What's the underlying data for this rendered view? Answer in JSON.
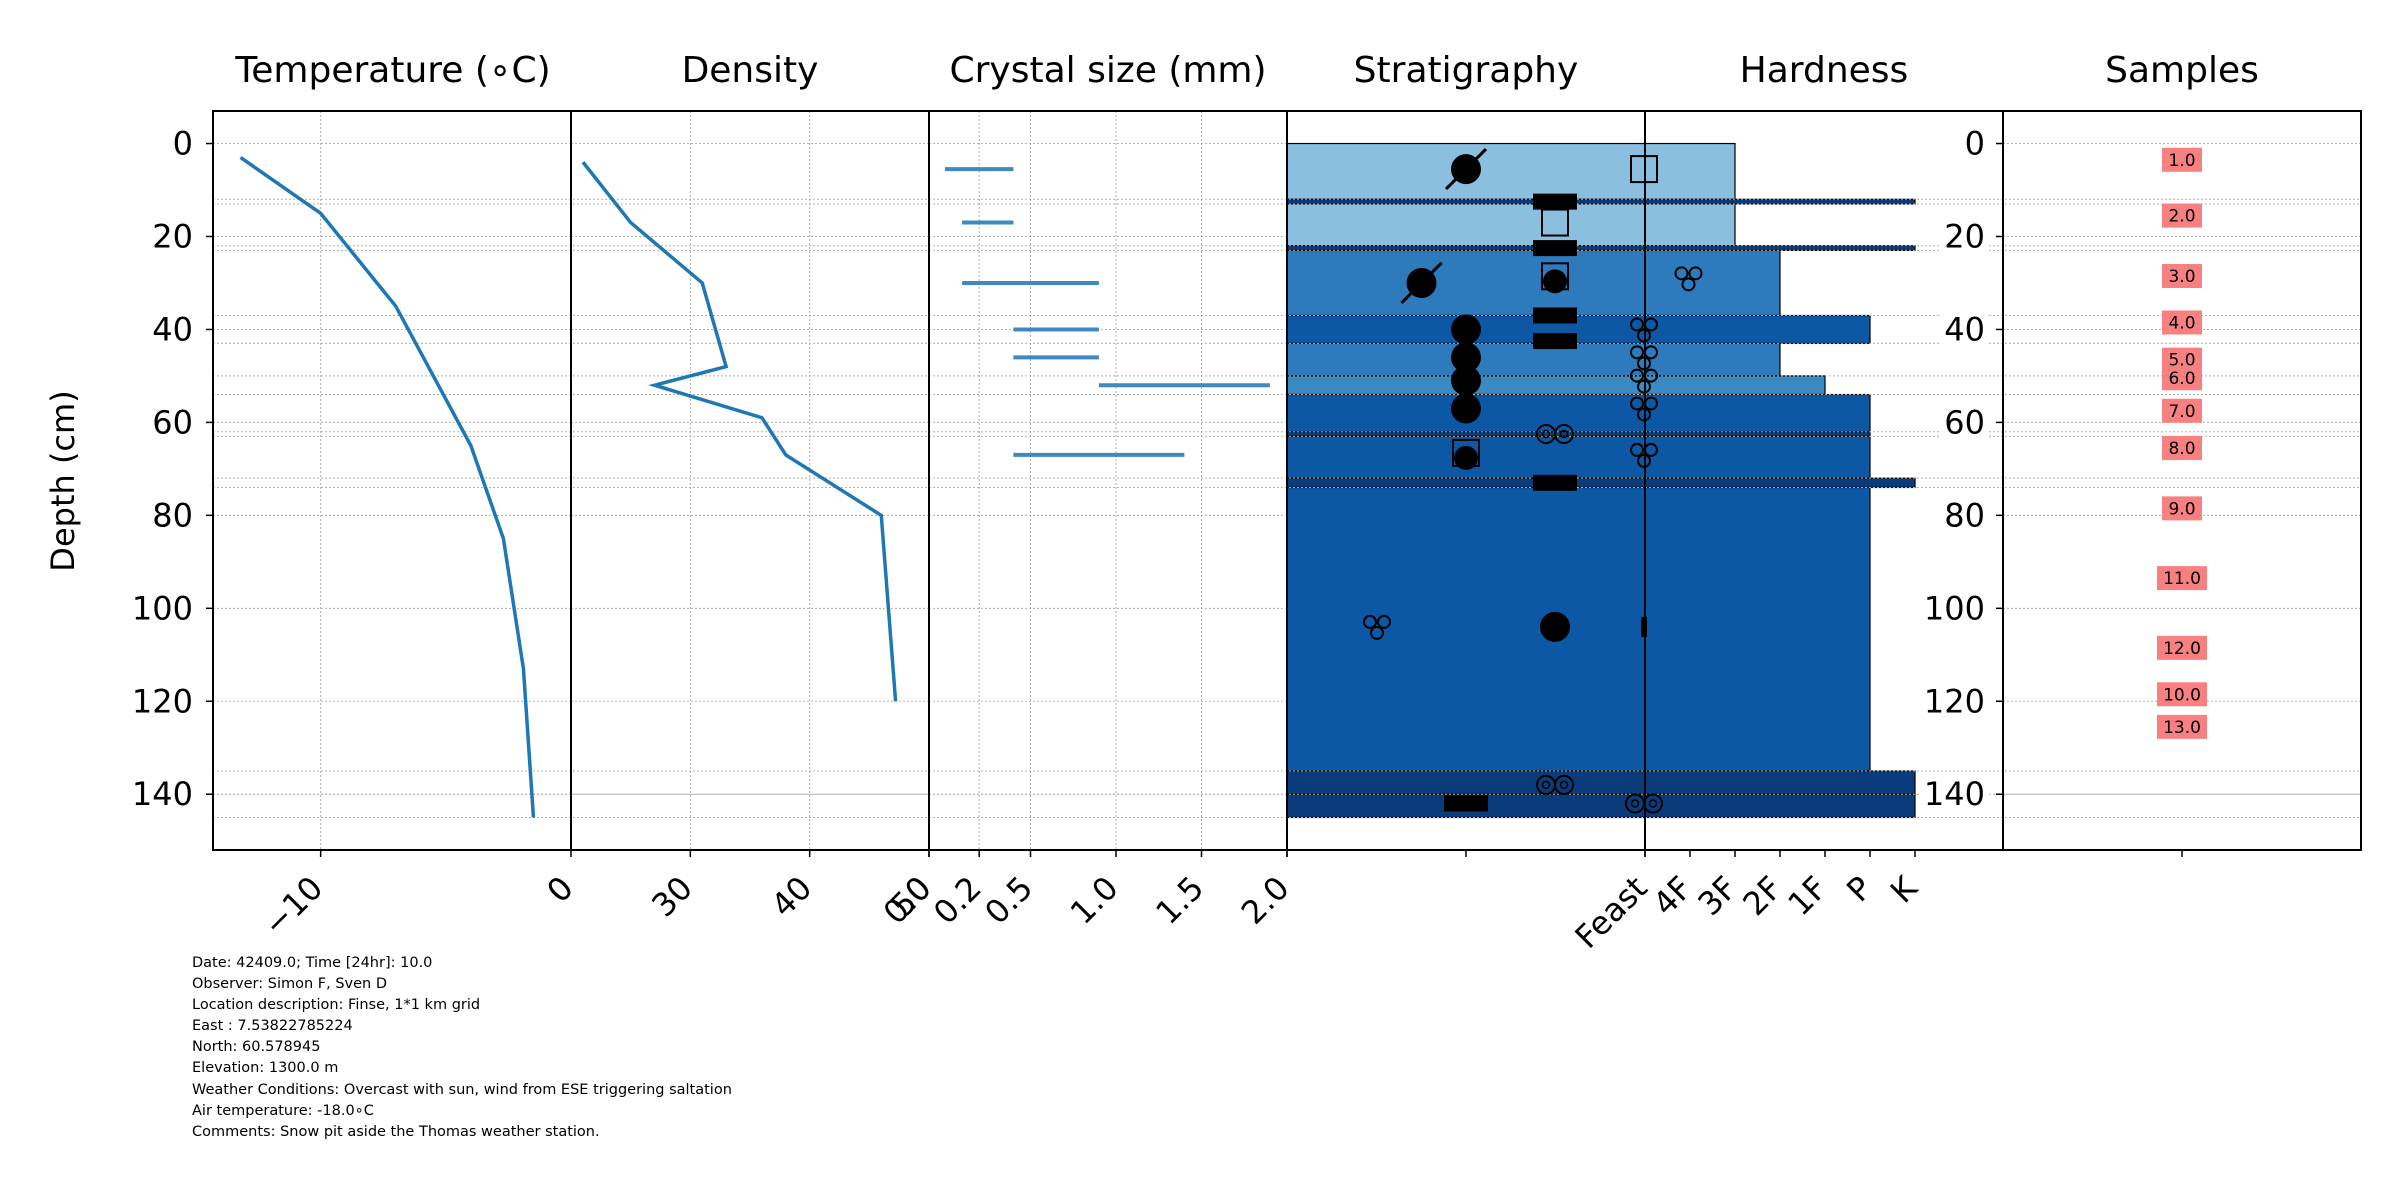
{
  "figure": {
    "ylabel": "Depth (cm)",
    "y_ticks": [
      0,
      20,
      40,
      60,
      80,
      100,
      120,
      140
    ]
  },
  "chart_data": [
    {
      "type": "line",
      "title": "Temperature (∘C)",
      "x_ticks": [
        -10,
        0
      ],
      "xlim": [
        -14.3,
        0
      ],
      "ylim": [
        152,
        -7
      ],
      "series": [
        {
          "x": [
            -13.2,
            -10.0,
            -7.0,
            -4.0,
            -2.7,
            -1.9,
            -1.5
          ],
          "y": [
            3,
            15,
            35,
            65,
            85,
            113,
            145
          ]
        }
      ]
    },
    {
      "type": "line",
      "title": "Density",
      "x_ticks": [
        30,
        40,
        50
      ],
      "xlim": [
        20,
        50
      ],
      "ylim": [
        152,
        -7
      ],
      "series": [
        {
          "x": [
            21,
            25,
            31,
            33,
            27,
            36,
            38,
            46,
            47.2
          ],
          "y": [
            4,
            17,
            30,
            48,
            52,
            59,
            67,
            80,
            120
          ]
        }
      ]
    },
    {
      "type": "bar",
      "title": "Crystal size (mm)",
      "x_ticks": [
        0,
        0.2,
        0.5,
        1.0,
        1.5,
        2.0
      ],
      "xlim": [
        0,
        2.0
      ],
      "ylim": [
        152,
        -7
      ],
      "bars": [
        {
          "depth": 5.5,
          "min": 0.0,
          "max": 0.4
        },
        {
          "depth": 17,
          "min": 0.1,
          "max": 0.4
        },
        {
          "depth": 30,
          "min": 0.1,
          "max": 0.9
        },
        {
          "depth": 40,
          "min": 0.4,
          "max": 0.9
        },
        {
          "depth": 46,
          "min": 0.4,
          "max": 0.9
        },
        {
          "depth": 52,
          "min": 0.9,
          "max": 1.9
        },
        {
          "depth": 67,
          "min": 0.4,
          "max": 1.4
        }
      ]
    },
    {
      "type": "table",
      "title": "Stratigraphy",
      "ylim": [
        152,
        -7
      ],
      "layers": [
        {
          "top": 0,
          "bottom": 12,
          "color": "#8bbfdf"
        },
        {
          "top": 12,
          "bottom": 13,
          "color": "#0a3b7a"
        },
        {
          "top": 13,
          "bottom": 22,
          "color": "#8bbfdf"
        },
        {
          "top": 22,
          "bottom": 23,
          "color": "#0a3b7a"
        },
        {
          "top": 23,
          "bottom": 37,
          "color": "#2d7bbd"
        },
        {
          "top": 37,
          "bottom": 43,
          "color": "#0c58a5"
        },
        {
          "top": 43,
          "bottom": 50,
          "color": "#2d7bbd"
        },
        {
          "top": 50,
          "bottom": 54,
          "color": "#3a8ac4"
        },
        {
          "top": 54,
          "bottom": 62,
          "color": "#0c58a5"
        },
        {
          "top": 62,
          "bottom": 63,
          "color": "#0a3b7a"
        },
        {
          "top": 63,
          "bottom": 72,
          "color": "#0c58a5"
        },
        {
          "top": 72,
          "bottom": 74,
          "color": "#0a3b7a"
        },
        {
          "top": 74,
          "bottom": 135,
          "color": "#0c58a5"
        },
        {
          "top": 135,
          "bottom": 140,
          "color": "#0a3b7a"
        },
        {
          "top": 140,
          "bottom": 145,
          "color": "#0a3b7a"
        }
      ],
      "symbols": [
        {
          "shape": "dot-slash",
          "col": 1,
          "depth": 5.5
        },
        {
          "shape": "square",
          "col": 3,
          "depth": 5.5
        },
        {
          "shape": "bar",
          "col": 2,
          "depth": 12.5
        },
        {
          "shape": "square",
          "col": 2,
          "depth": 17
        },
        {
          "shape": "bar",
          "col": 2,
          "depth": 22.5
        },
        {
          "shape": "dot-slash",
          "col": 0.5,
          "depth": 30
        },
        {
          "shape": "square-dot",
          "col": 2,
          "depth": 29
        },
        {
          "shape": "trefoil",
          "col": 3.5,
          "depth": 29
        },
        {
          "shape": "bar",
          "col": 2,
          "depth": 37
        },
        {
          "shape": "dot",
          "col": 1,
          "depth": 40
        },
        {
          "shape": "trefoil",
          "col": 3,
          "depth": 40
        },
        {
          "shape": "bar",
          "col": 2,
          "depth": 42.5
        },
        {
          "shape": "dot",
          "col": 1,
          "depth": 46
        },
        {
          "shape": "trefoil",
          "col": 3,
          "depth": 46
        },
        {
          "shape": "dot",
          "col": 1,
          "depth": 51
        },
        {
          "shape": "trefoil",
          "col": 3,
          "depth": 51
        },
        {
          "shape": "dot",
          "col": 1,
          "depth": 57
        },
        {
          "shape": "trefoil",
          "col": 3,
          "depth": 57
        },
        {
          "shape": "double-ring",
          "col": 2,
          "depth": 62.5
        },
        {
          "shape": "square-dot",
          "col": 1,
          "depth": 67
        },
        {
          "shape": "trefoil",
          "col": 3,
          "depth": 67
        },
        {
          "shape": "bar",
          "col": 2,
          "depth": 73
        },
        {
          "shape": "trefoil",
          "col": 0,
          "depth": 104
        },
        {
          "shape": "dot",
          "col": 2,
          "depth": 104
        },
        {
          "shape": "tick",
          "col": 3,
          "depth": 104
        },
        {
          "shape": "double-ring",
          "col": 2,
          "depth": 138
        },
        {
          "shape": "bar",
          "col": 1,
          "depth": 142
        },
        {
          "shape": "double-ring",
          "col": 3,
          "depth": 142
        }
      ]
    },
    {
      "type": "bar",
      "title": "Hardness",
      "x_ticks": [
        "Feast",
        "4F",
        "3F",
        "2F",
        "1F",
        "P",
        "K"
      ],
      "ylim": [
        152,
        -7
      ],
      "bars": [
        {
          "top": 0,
          "bottom": 12,
          "value": "3F"
        },
        {
          "top": 12,
          "bottom": 13,
          "value": "K"
        },
        {
          "top": 13,
          "bottom": 22,
          "value": "3F"
        },
        {
          "top": 22,
          "bottom": 23,
          "value": "K"
        },
        {
          "top": 23,
          "bottom": 37,
          "value": "2F"
        },
        {
          "top": 37,
          "bottom": 43,
          "value": "P"
        },
        {
          "top": 43,
          "bottom": 50,
          "value": "2F"
        },
        {
          "top": 50,
          "bottom": 54,
          "value": "1F"
        },
        {
          "top": 54,
          "bottom": 62,
          "value": "P"
        },
        {
          "top": 62,
          "bottom": 63,
          "value": "P"
        },
        {
          "top": 63,
          "bottom": 72,
          "value": "P"
        },
        {
          "top": 72,
          "bottom": 74,
          "value": "K"
        },
        {
          "top": 74,
          "bottom": 135,
          "value": "P"
        },
        {
          "top": 135,
          "bottom": 140,
          "value": "K"
        },
        {
          "top": 140,
          "bottom": 145,
          "value": "K"
        }
      ]
    },
    {
      "type": "table",
      "title": "Samples",
      "ylim": [
        152,
        -7
      ],
      "labels": [
        {
          "text": "1.0",
          "depth": 3.5
        },
        {
          "text": "2.0",
          "depth": 15.5
        },
        {
          "text": "3.0",
          "depth": 28.5
        },
        {
          "text": "4.0",
          "depth": 38.5
        },
        {
          "text": "5.0",
          "depth": 46.5
        },
        {
          "text": "6.0",
          "depth": 50.5
        },
        {
          "text": "7.0",
          "depth": 57.5
        },
        {
          "text": "8.0",
          "depth": 65.5
        },
        {
          "text": "9.0",
          "depth": 78.5
        },
        {
          "text": "11.0",
          "depth": 93.5
        },
        {
          "text": "12.0",
          "depth": 108.5
        },
        {
          "text": "10.0",
          "depth": 118.5
        },
        {
          "text": "13.0",
          "depth": 125.5
        }
      ]
    }
  ],
  "metadata_lines": [
    "Date: 42409.0; Time [24hr]: 10.0",
    "Observer: Simon F, Sven D",
    "Location description: Finse, 1*1 km grid",
    "East : 7.53822785224",
    "North: 60.578945",
    "Elevation: 1300.0 m",
    "Weather Conditions: Overcast with sun, wind from ESE triggering saltation",
    "Air temperature: -18.0∘C",
    "Comments: Snow pit aside the Thomas weather station."
  ],
  "colors": {
    "line": "#1f77b4",
    "crystal": "#3e88c3",
    "sample_bg": "#f88080",
    "grid": "#b0b0b0"
  }
}
